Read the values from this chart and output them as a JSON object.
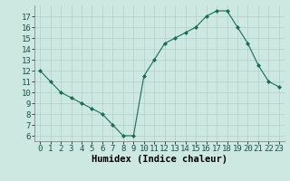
{
  "x": [
    0,
    1,
    2,
    3,
    4,
    5,
    6,
    7,
    8,
    9,
    10,
    11,
    12,
    13,
    14,
    15,
    16,
    17,
    18,
    19,
    20,
    21,
    22,
    23
  ],
  "y": [
    12,
    11,
    10,
    9.5,
    9,
    8.5,
    8,
    7,
    6,
    6,
    11.5,
    13,
    14.5,
    15,
    15.5,
    16,
    17,
    17.5,
    17.5,
    16,
    14.5,
    12.5,
    11,
    10.5
  ],
  "xlabel": "Humidex (Indice chaleur)",
  "ylim": [
    5.5,
    18
  ],
  "xlim": [
    -0.5,
    23.5
  ],
  "yticks": [
    6,
    7,
    8,
    9,
    10,
    11,
    12,
    13,
    14,
    15,
    16,
    17
  ],
  "xticks": [
    0,
    1,
    2,
    3,
    4,
    5,
    6,
    7,
    8,
    9,
    10,
    11,
    12,
    13,
    14,
    15,
    16,
    17,
    18,
    19,
    20,
    21,
    22,
    23
  ],
  "line_color": "#1a6b5a",
  "marker_color": "#1a6b5a",
  "bg_color": "#cce8e0",
  "grid_color": "#b0d0c8",
  "tick_label_fontsize": 6.5,
  "xlabel_fontsize": 7.5
}
